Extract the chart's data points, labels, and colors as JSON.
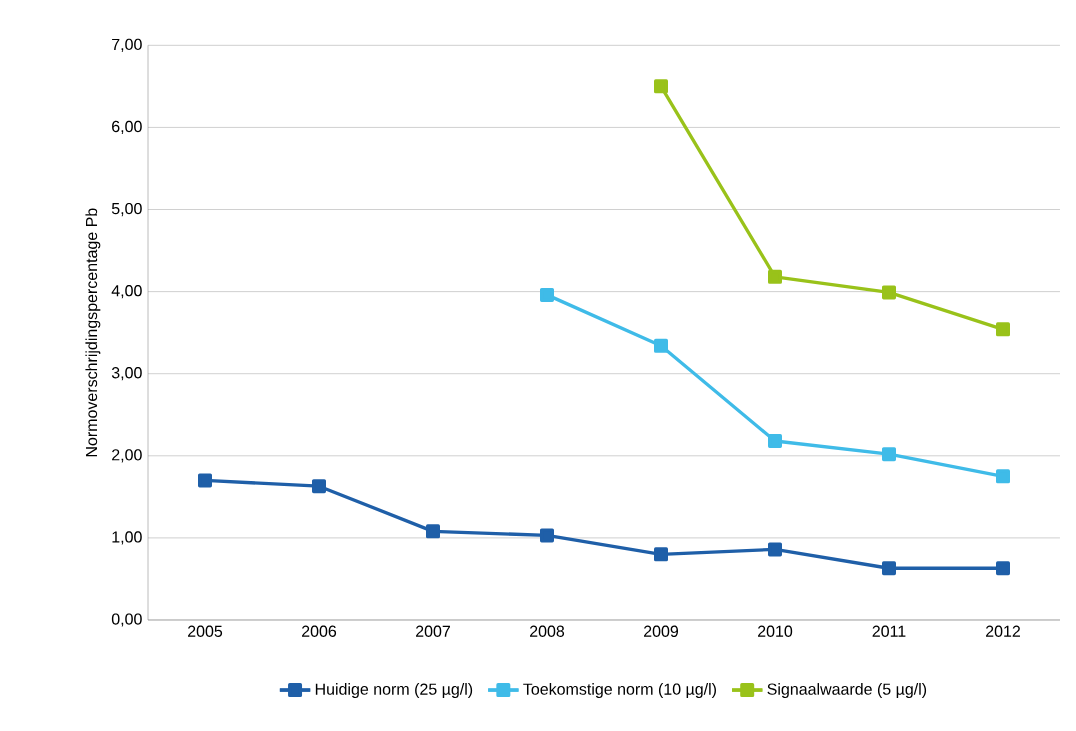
{
  "chart_data": {
    "type": "line",
    "ylabel": "Normoverschrijdingspercentage Pb",
    "categories": [
      "2005",
      "2006",
      "2007",
      "2008",
      "2009",
      "2010",
      "2011",
      "2012"
    ],
    "series": [
      {
        "name": "Huidige norm (25 µg/l)",
        "color": "#1f5fa8",
        "values": [
          1.7,
          1.63,
          1.08,
          1.03,
          0.8,
          0.86,
          0.63,
          0.63
        ]
      },
      {
        "name": "Toekomstige norm (10 µg/l)",
        "color": "#3fbbe8",
        "values": [
          null,
          null,
          null,
          3.96,
          3.34,
          2.18,
          2.02,
          1.75
        ]
      },
      {
        "name": "Signaalwaarde (5 µg/l)",
        "color": "#99c21a",
        "values": [
          null,
          null,
          null,
          null,
          6.5,
          4.18,
          3.99,
          3.54
        ]
      }
    ],
    "ylim": [
      0,
      7
    ],
    "yticks": [
      {
        "value": 0,
        "label": "0,00"
      },
      {
        "value": 1,
        "label": "1,00"
      },
      {
        "value": 2,
        "label": "2,00"
      },
      {
        "value": 3,
        "label": "3,00"
      },
      {
        "value": 4,
        "label": "4,00"
      },
      {
        "value": 5,
        "label": "5,00"
      },
      {
        "value": 6,
        "label": "6,00"
      },
      {
        "value": 7,
        "label": "7,00"
      }
    ],
    "grid": "y",
    "legend": "bottom",
    "marker": "square",
    "line_style": "solid"
  }
}
